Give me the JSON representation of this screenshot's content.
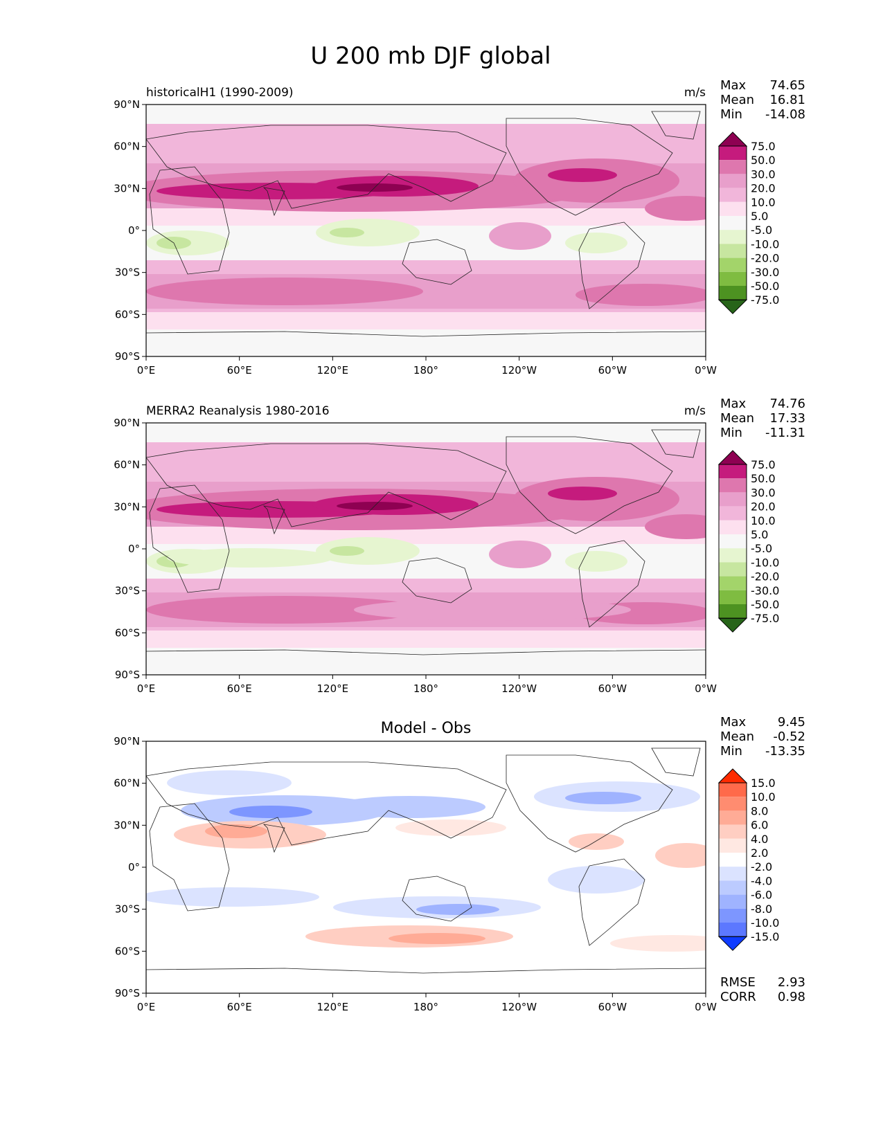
{
  "figure": {
    "title": "U 200 mb DJF global"
  },
  "axes": {
    "x_ticks": [
      "0°E",
      "60°E",
      "120°E",
      "180°",
      "120°W",
      "60°W",
      "0°W"
    ],
    "y_ticks": [
      "90°N",
      "60°N",
      "30°N",
      "0°",
      "30°S",
      "60°S",
      "90°S"
    ],
    "lon_range": [
      0,
      360
    ],
    "lat_range": [
      -90,
      90
    ]
  },
  "colorbars": {
    "field": {
      "labels": [
        "75.0",
        "50.0",
        "30.0",
        "20.0",
        "10.0",
        "5.0",
        "-5.0",
        "-10.0",
        "-20.0",
        "-30.0",
        "-50.0",
        "-75.0"
      ],
      "colors": [
        "#8e0152",
        "#c51b7d",
        "#de77ae",
        "#e89fcb",
        "#f1b6da",
        "#fde0ef",
        "#f7f7f7",
        "#e6f5d0",
        "#c7e6a0",
        "#a3d46a",
        "#7fbc41",
        "#4d9221",
        "#276419"
      ]
    },
    "diff": {
      "labels": [
        "15.0",
        "10.0",
        "8.0",
        "6.0",
        "4.0",
        "2.0",
        "-2.0",
        "-4.0",
        "-6.0",
        "-8.0",
        "-10.0",
        "-15.0"
      ],
      "colors": [
        "#ff2b00",
        "#ff6a4a",
        "#ff8c70",
        "#ffab96",
        "#ffcec2",
        "#ffe8e2",
        "#ffffff",
        "#dbe3ff",
        "#bccbff",
        "#9fb3ff",
        "#7d96ff",
        "#5c78ff",
        "#0f3cff"
      ]
    }
  },
  "panels": [
    {
      "id": "model",
      "title_left": "historicalH1 (1990-2009)",
      "title_center": "",
      "units": "m/s",
      "stats": [
        {
          "label": "Max",
          "value": "74.65"
        },
        {
          "label": "Mean",
          "value": "16.81"
        },
        {
          "label": "Min",
          "value": "-14.08"
        }
      ]
    },
    {
      "id": "obs",
      "title_left": "MERRA2 Reanalysis 1980-2016",
      "title_center": "",
      "units": "m/s",
      "stats": [
        {
          "label": "Max",
          "value": "74.76"
        },
        {
          "label": "Mean",
          "value": "17.33"
        },
        {
          "label": "Min",
          "value": "-11.31"
        }
      ]
    },
    {
      "id": "diff",
      "title_left": "",
      "title_center": "Model - Obs",
      "units": "",
      "stats": [
        {
          "label": "Max",
          "value": "9.45"
        },
        {
          "label": "Mean",
          "value": "-0.52"
        },
        {
          "label": "Min",
          "value": "-13.35"
        }
      ],
      "extra_stats": [
        {
          "label": "RMSE",
          "value": "2.93"
        },
        {
          "label": "CORR",
          "value": "0.98"
        }
      ]
    }
  ]
}
